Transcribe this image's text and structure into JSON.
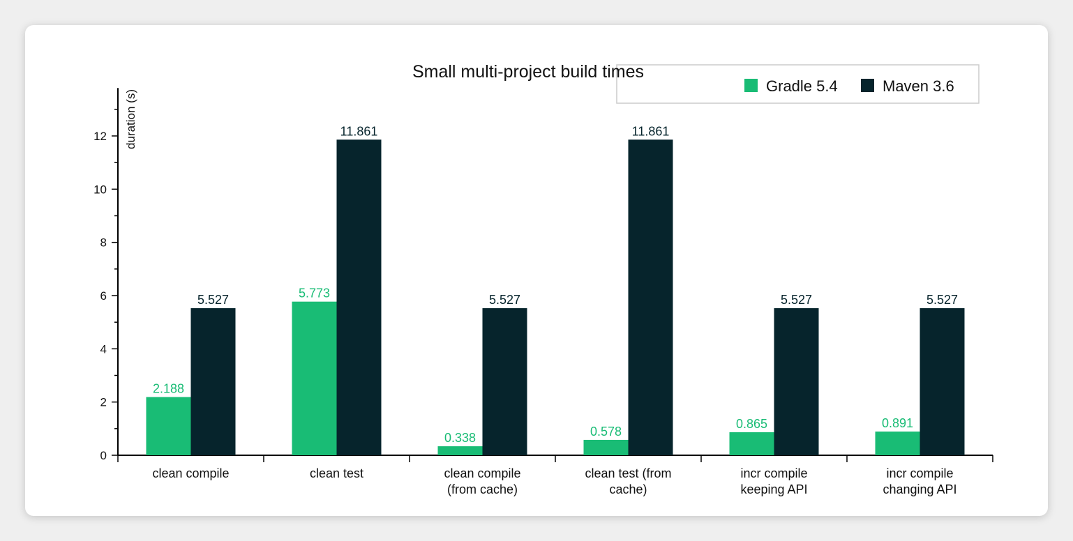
{
  "chart_data": {
    "type": "bar",
    "title": "Small multi-project build times",
    "ylabel": "duration (s)",
    "ylim": [
      0,
      13.8
    ],
    "yticks": [
      0,
      2,
      4,
      6,
      8,
      10,
      12
    ],
    "categories": [
      [
        "clean compile"
      ],
      [
        "clean test"
      ],
      [
        "clean compile",
        "(from cache)"
      ],
      [
        "clean test (from",
        "cache)"
      ],
      [
        "incr compile",
        "keeping API"
      ],
      [
        "incr compile",
        "changing API"
      ]
    ],
    "series": [
      {
        "name": "Gradle 5.4",
        "color": "#19bc75",
        "values": [
          2.188,
          5.773,
          0.338,
          0.578,
          0.865,
          0.891
        ],
        "labels": [
          "2.188",
          "5.773",
          "0.338",
          "0.578",
          "0.865",
          "0.891"
        ]
      },
      {
        "name": "Maven 3.6",
        "color": "#06242c",
        "values": [
          5.527,
          11.861,
          5.527,
          11.861,
          5.527,
          5.527
        ],
        "labels": [
          "5.527",
          "11.861",
          "5.527",
          "11.861",
          "5.527",
          "5.527"
        ]
      }
    ],
    "legend": "top-right",
    "grid": false
  }
}
